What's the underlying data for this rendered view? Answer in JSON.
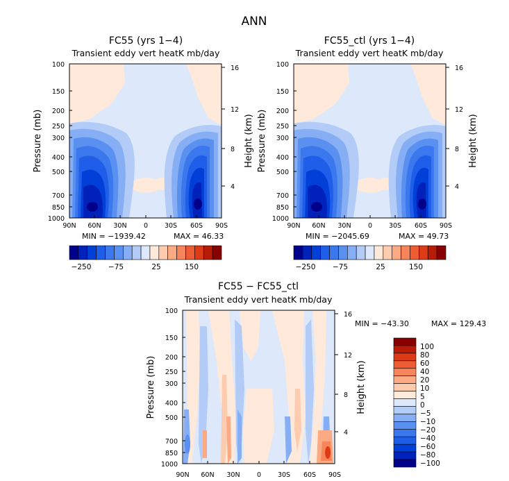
{
  "page_title": "ANN",
  "colors": {
    "scale": [
      "#00008b",
      "#0022bb",
      "#0040d8",
      "#1f5ee8",
      "#3b78ee",
      "#5a90f0",
      "#86aef4",
      "#b3cbf7",
      "#dde9fb",
      "#ffe9da",
      "#fdcbae",
      "#fcaa84",
      "#f7855b",
      "#ee5c33",
      "#dd3a16",
      "#b81b08",
      "#880000"
    ]
  },
  "chart_data": [
    {
      "type": "contour",
      "title": "FC55 (yrs 1−4)",
      "subtitle": "Transient eddy vert heatK mb/day",
      "ylabel": "Pressure (mb)",
      "ylabel_right": "Height (km)",
      "xticks": [
        "90N",
        "60N",
        "30N",
        "0",
        "30S",
        "60S",
        "90S"
      ],
      "yticks": [
        "100",
        "150",
        "200",
        "250",
        "300",
        "400",
        "500",
        "700",
        "850",
        "1000"
      ],
      "height_ticks": [
        "16",
        "12",
        "8",
        "4"
      ],
      "min_label": "MIN = −1939.42",
      "max_label": "MAX = 46.33",
      "colorbar_labels": [
        "−250",
        "−75",
        "25",
        "150"
      ]
    },
    {
      "type": "contour",
      "title": "FC55_ctl (yrs 1−4)",
      "subtitle": "Transient eddy vert heatK mb/day",
      "ylabel": "Pressure (mb)",
      "ylabel_right": "Height (km)",
      "xticks": [
        "90N",
        "60N",
        "30N",
        "0",
        "30S",
        "60S",
        "90S"
      ],
      "yticks": [
        "100",
        "150",
        "200",
        "250",
        "300",
        "400",
        "500",
        "700",
        "850",
        "1000"
      ],
      "height_ticks": [
        "16",
        "12",
        "8",
        "4"
      ],
      "min_label": "MIN = −2045.69",
      "max_label": "MAX = 49.73",
      "colorbar_labels": [
        "−250",
        "−75",
        "25",
        "150"
      ]
    },
    {
      "type": "contour",
      "title": "FC55 − FC55_ctl",
      "subtitle": "Transient eddy vert heatK mb/day",
      "ylabel": "Pressure (mb)",
      "ylabel_right": "Height (km)",
      "xticks": [
        "90N",
        "60N",
        "30N",
        "0",
        "30S",
        "60S",
        "90S"
      ],
      "yticks": [
        "100",
        "150",
        "200",
        "250",
        "300",
        "400",
        "500",
        "700",
        "850",
        "1000"
      ],
      "height_ticks": [
        "16",
        "12",
        "8",
        "4"
      ],
      "min_label": "MIN = −43.30",
      "max_label": "MAX = 129.43",
      "colorbar_labels": [
        "100",
        "80",
        "60",
        "40",
        "20",
        "10",
        "5",
        "0",
        "−5",
        "−10",
        "−20",
        "−40",
        "−60",
        "−80",
        "−100"
      ]
    }
  ]
}
